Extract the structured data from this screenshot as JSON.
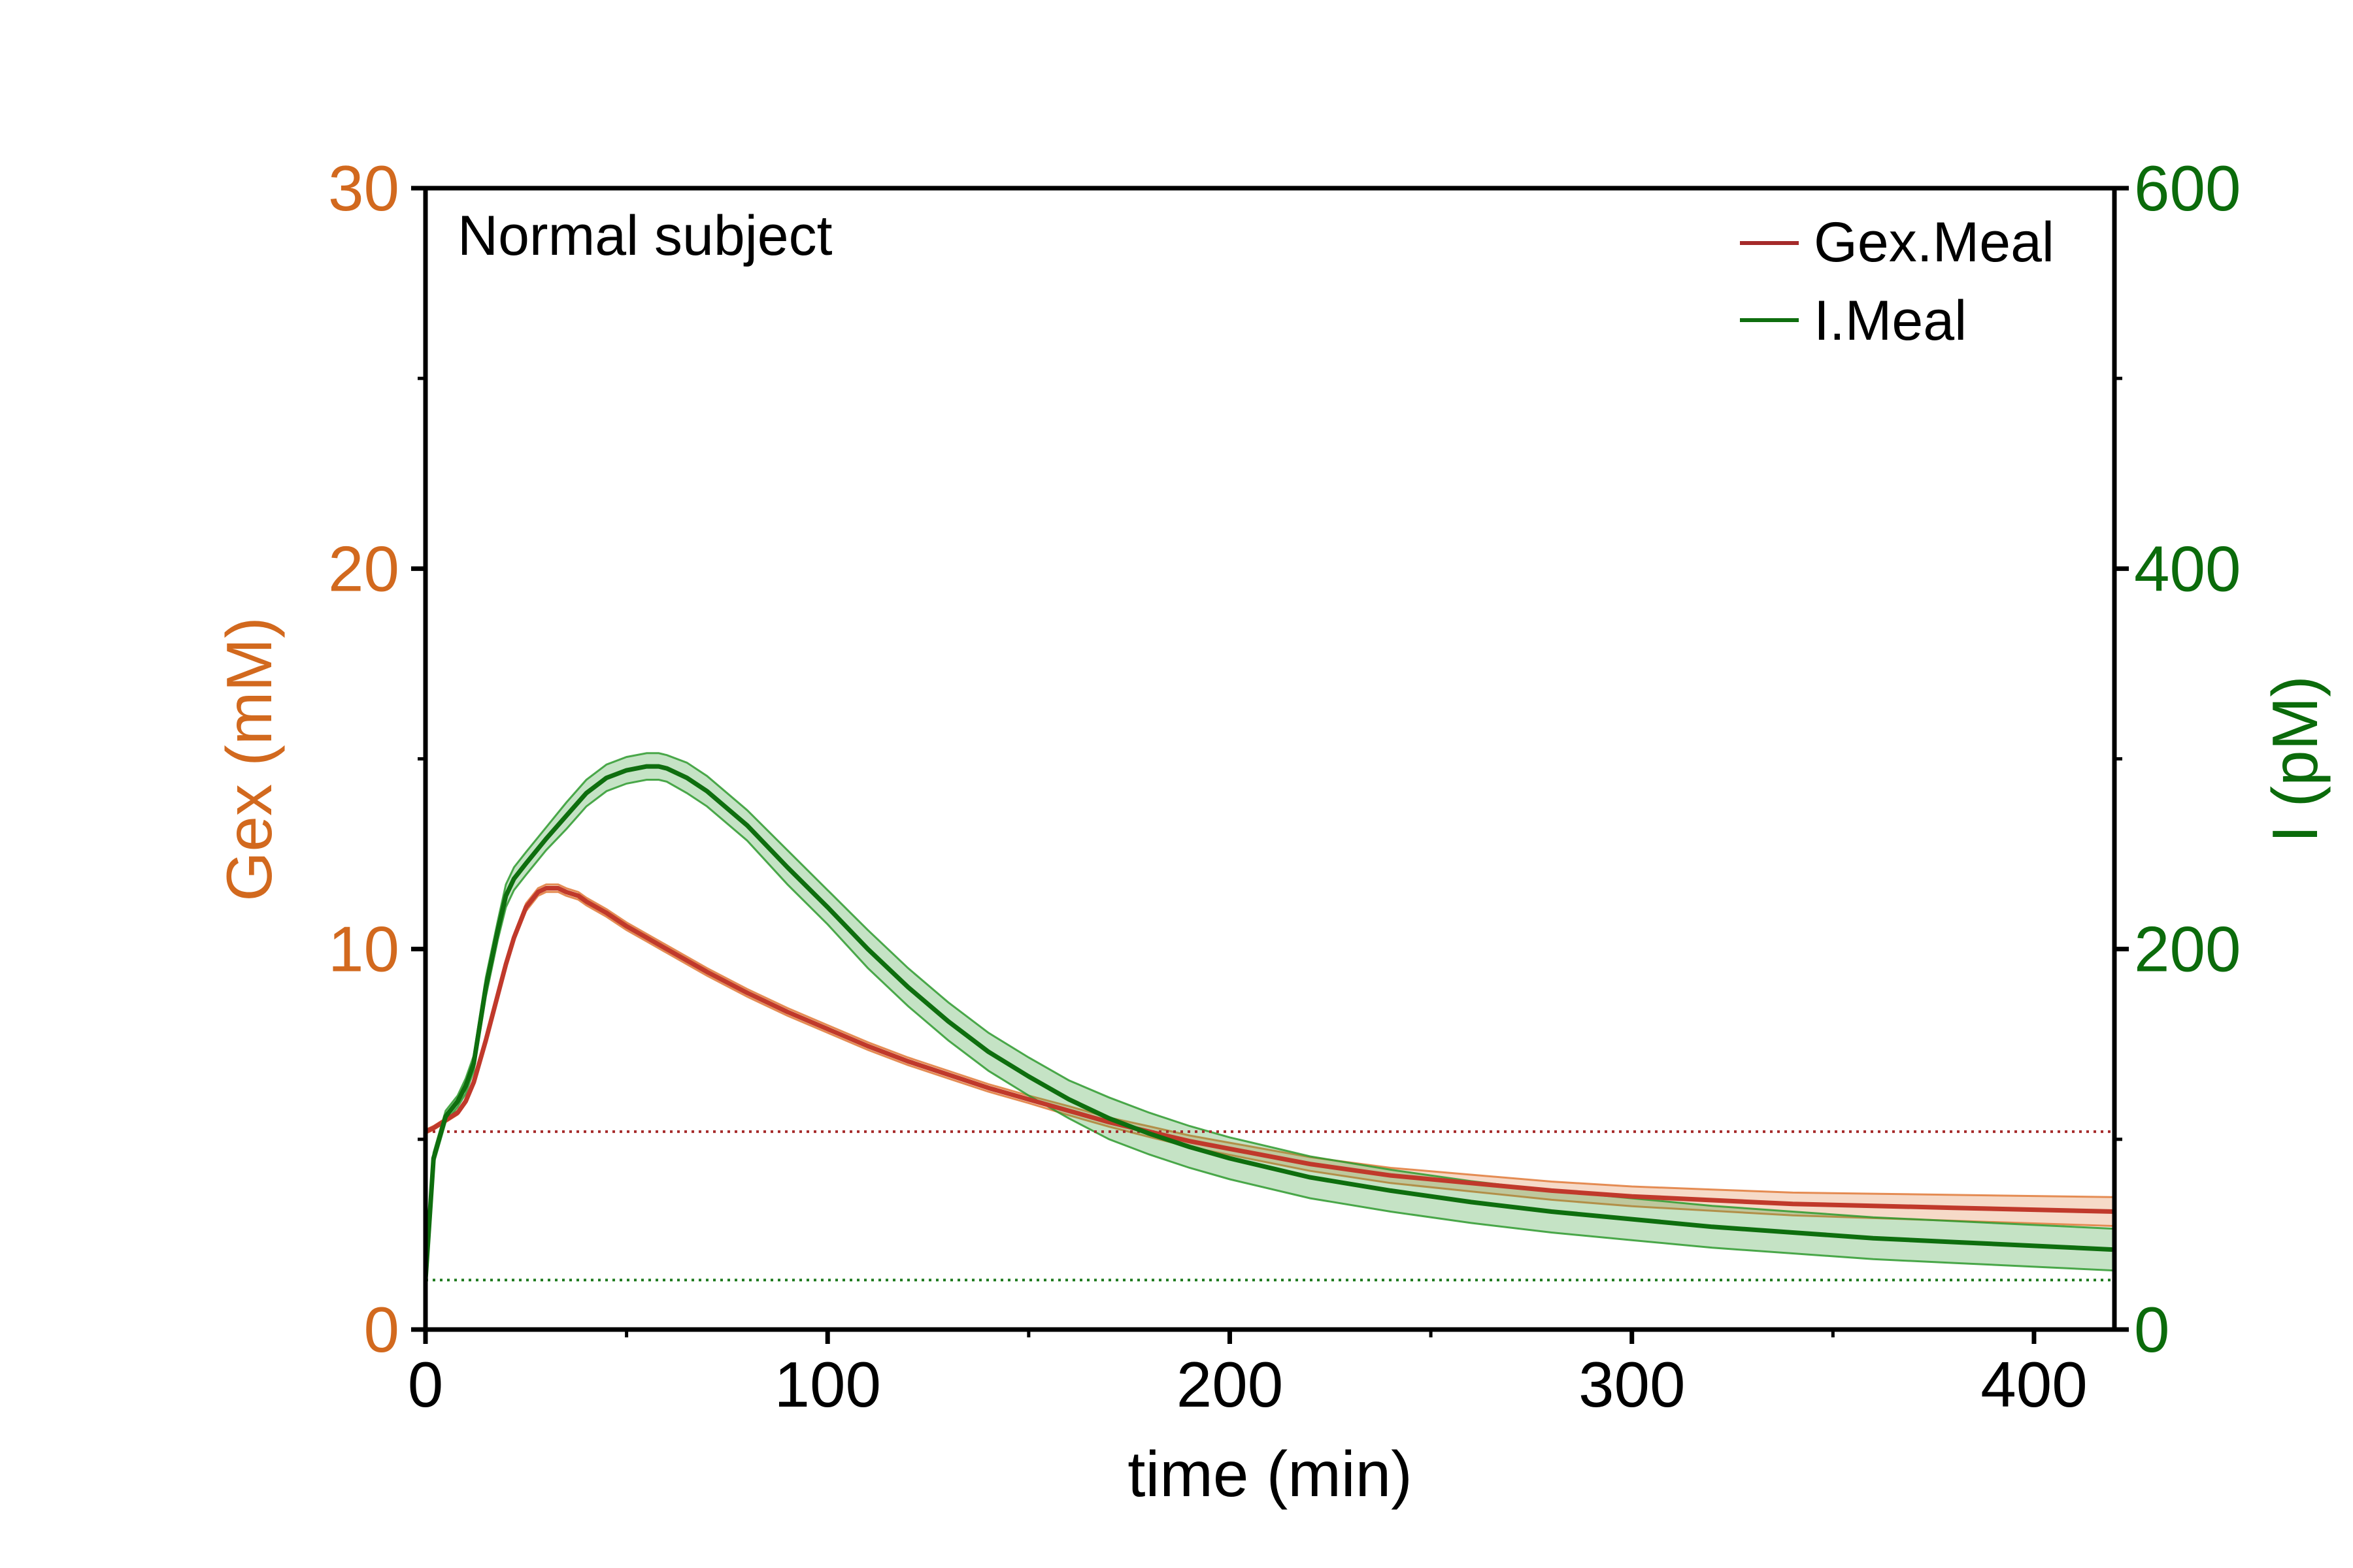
{
  "chart_data": {
    "type": "line",
    "annotation": "Normal subject",
    "xlabel": "time (min)",
    "ylabel_left": "Gex (mM)",
    "ylabel_right": "I (pM)",
    "xlim": [
      0,
      420
    ],
    "ylim_left": [
      0,
      30
    ],
    "ylim_right": [
      0,
      600
    ],
    "xticks": [
      "0",
      "100",
      "200",
      "300",
      "400"
    ],
    "yticks_left": [
      "0",
      "10",
      "20",
      "30"
    ],
    "yticks_right": [
      "0",
      "200",
      "400",
      "600"
    ],
    "grid": false,
    "legend_position": "top-right",
    "colors": {
      "gex_axis": "#D2691E",
      "gex_line": "#C0392B",
      "gex_band": "#E07A3A",
      "i_axis": "#0B6B0B",
      "i_line": "#0E6E0E",
      "i_band": "#2E9A2E",
      "gex_ref": "#A52A2A",
      "i_ref": "#1E7A1E"
    },
    "reference_lines": [
      {
        "series": "Gex.Meal",
        "axis": "left",
        "y": 5.2
      },
      {
        "series": "I.Meal",
        "axis": "right",
        "y": 26
      }
    ],
    "series": [
      {
        "name": "Gex.Meal",
        "axis": "left",
        "x": [
          0,
          2,
          5,
          8,
          10,
          12,
          15,
          18,
          20,
          22,
          25,
          28,
          30,
          33,
          35,
          38,
          40,
          45,
          50,
          55,
          60,
          70,
          80,
          90,
          100,
          110,
          120,
          130,
          140,
          150,
          160,
          170,
          180,
          190,
          200,
          220,
          240,
          260,
          280,
          300,
          320,
          340,
          360,
          380,
          400,
          420
        ],
        "y": [
          5.2,
          5.3,
          5.5,
          5.7,
          6.0,
          6.5,
          7.6,
          8.8,
          9.6,
          10.3,
          11.1,
          11.5,
          11.6,
          11.6,
          11.5,
          11.4,
          11.25,
          10.95,
          10.6,
          10.3,
          10.0,
          9.4,
          8.85,
          8.35,
          7.9,
          7.45,
          7.05,
          6.7,
          6.35,
          6.05,
          5.75,
          5.45,
          5.2,
          4.95,
          4.75,
          4.35,
          4.05,
          3.85,
          3.65,
          3.5,
          3.4,
          3.3,
          3.25,
          3.2,
          3.15,
          3.1
        ],
        "err": [
          0.05,
          0.05,
          0.05,
          0.05,
          0.06,
          0.06,
          0.07,
          0.08,
          0.08,
          0.09,
          0.1,
          0.1,
          0.1,
          0.1,
          0.1,
          0.1,
          0.1,
          0.1,
          0.1,
          0.1,
          0.1,
          0.1,
          0.1,
          0.1,
          0.1,
          0.1,
          0.1,
          0.1,
          0.1,
          0.1,
          0.12,
          0.12,
          0.14,
          0.15,
          0.16,
          0.18,
          0.2,
          0.22,
          0.24,
          0.26,
          0.28,
          0.3,
          0.32,
          0.34,
          0.36,
          0.38
        ]
      },
      {
        "name": "I.Meal",
        "axis": "right",
        "x": [
          0,
          2,
          5,
          8,
          10,
          12,
          15,
          18,
          20,
          22,
          25,
          30,
          35,
          40,
          45,
          50,
          55,
          58,
          60,
          65,
          70,
          80,
          90,
          100,
          110,
          120,
          130,
          140,
          150,
          160,
          170,
          180,
          190,
          200,
          220,
          240,
          260,
          280,
          300,
          320,
          340,
          360,
          380,
          400,
          420
        ],
        "y": [
          26,
          90,
          112,
          120,
          128,
          140,
          180,
          210,
          228,
          237,
          245,
          258,
          270,
          282,
          290,
          294,
          296,
          296,
          295,
          290,
          283,
          265,
          243,
          222,
          200,
          180,
          162,
          146,
          133,
          121,
          111,
          103,
          96,
          90,
          80,
          73,
          67,
          62,
          58,
          54,
          51,
          48,
          46,
          44,
          42
        ],
        "err": [
          2,
          3,
          3,
          3,
          4,
          4,
          5,
          5,
          6,
          6,
          6,
          6,
          7,
          7,
          7,
          7,
          7,
          7,
          7,
          8,
          8,
          8,
          9,
          9,
          10,
          10,
          10,
          10,
          10,
          10,
          11,
          11,
          11,
          11,
          11,
          11,
          11,
          11,
          11,
          11,
          11,
          11,
          11,
          11,
          11
        ]
      }
    ]
  }
}
